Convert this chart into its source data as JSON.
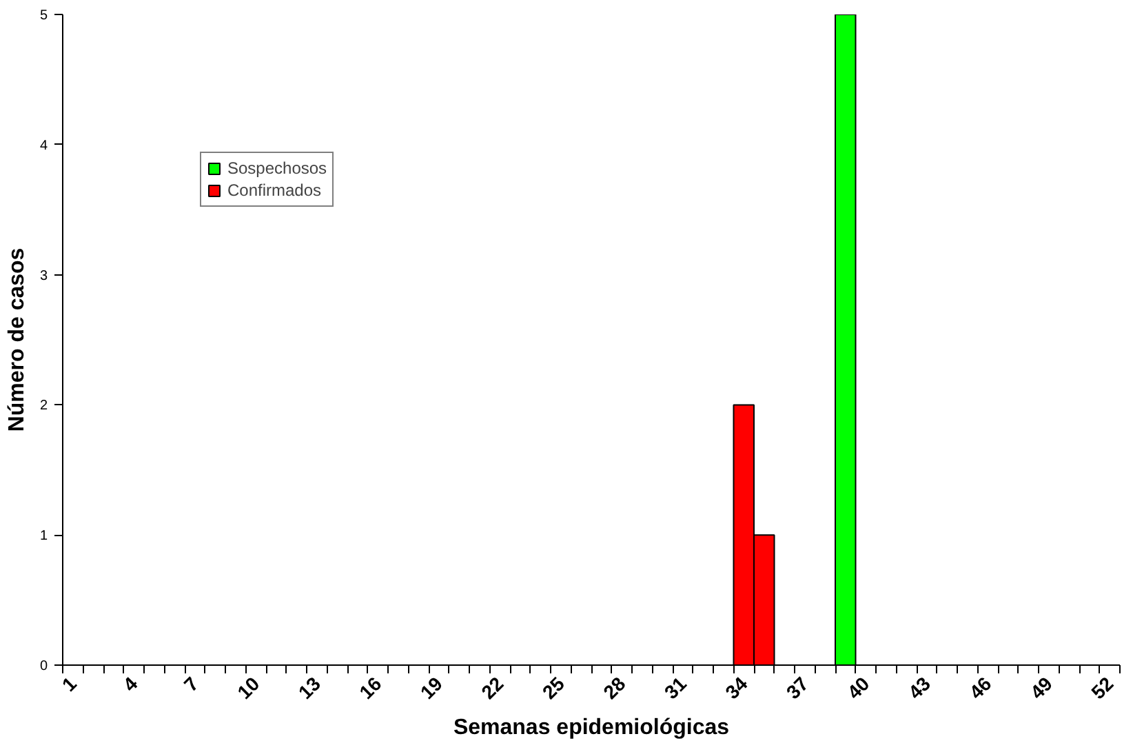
{
  "chart_data": {
    "type": "bar",
    "xlabel": "Semanas epidemiológicas",
    "ylabel": "Número de casos",
    "categories": [
      "1",
      null,
      null,
      "4",
      null,
      null,
      "7",
      null,
      null,
      "10",
      null,
      null,
      "13",
      null,
      null,
      "16",
      null,
      null,
      "19",
      null,
      null,
      "22",
      null,
      null,
      "25",
      null,
      null,
      "28",
      null,
      null,
      "31",
      null,
      null,
      "34",
      null,
      null,
      "37",
      null,
      null,
      "40",
      null,
      null,
      "43",
      null,
      null,
      "46",
      null,
      null,
      "49",
      null,
      null,
      "52"
    ],
    "series": [
      {
        "name": "Sospechosos",
        "color": "#00ff00",
        "values": [
          null,
          null,
          null,
          null,
          null,
          null,
          null,
          null,
          null,
          null,
          null,
          null,
          null,
          null,
          null,
          null,
          null,
          null,
          null,
          null,
          null,
          null,
          null,
          null,
          null,
          null,
          null,
          null,
          null,
          null,
          null,
          null,
          null,
          null,
          null,
          null,
          null,
          null,
          5,
          null,
          null,
          null,
          null,
          null,
          null,
          null,
          null,
          null,
          null,
          null,
          null,
          null
        ]
      },
      {
        "name": "Confirmados",
        "color": "#ff0000",
        "values": [
          null,
          null,
          null,
          null,
          null,
          null,
          null,
          null,
          null,
          null,
          null,
          null,
          null,
          null,
          null,
          null,
          null,
          null,
          null,
          null,
          null,
          null,
          null,
          null,
          null,
          null,
          null,
          null,
          null,
          null,
          null,
          null,
          null,
          2,
          1,
          null,
          null,
          null,
          null,
          null,
          null,
          null,
          null,
          null,
          null,
          null,
          null,
          null,
          null,
          null,
          null,
          null
        ]
      }
    ],
    "ylim": [
      0,
      5
    ],
    "yticks": [
      0,
      1,
      2,
      3,
      4,
      5
    ],
    "grid": false,
    "legend": "top left"
  }
}
